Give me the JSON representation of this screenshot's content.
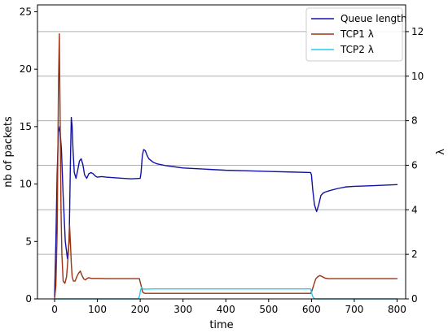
{
  "chart_data": {
    "type": "line",
    "xlabel": "time",
    "ylabel_left": "nb of packets",
    "ylabel_right": "λ",
    "xlim": [
      -40,
      820
    ],
    "ylim_left": [
      0,
      25.6
    ],
    "ylim_right": [
      0,
      13.2
    ],
    "xticks": [
      0,
      100,
      200,
      300,
      400,
      500,
      600,
      700,
      800
    ],
    "yticks_left": [
      0,
      5,
      10,
      15,
      20,
      25
    ],
    "yticks_right": [
      0,
      2,
      4,
      6,
      8,
      10,
      12
    ],
    "grid": "horizontal (right axis)",
    "legend_position": "top-right",
    "series": [
      {
        "name": "Queue length",
        "axis": "left",
        "color": "#1111aa",
        "x": [
          0,
          3,
          6,
          9,
          12,
          16,
          20,
          25,
          30,
          34,
          37,
          39,
          41,
          43,
          46,
          50,
          54,
          58,
          62,
          66,
          70,
          75,
          80,
          85,
          90,
          95,
          100,
          110,
          120,
          140,
          160,
          180,
          200,
          202,
          205,
          208,
          212,
          216,
          220,
          230,
          240,
          260,
          280,
          300,
          350,
          400,
          450,
          500,
          550,
          598,
          600,
          603,
          607,
          612,
          617,
          622,
          627,
          632,
          640,
          660,
          680,
          700,
          740,
          800
        ],
        "y": [
          0.2,
          5.0,
          11.0,
          14.5,
          15.0,
          13.0,
          9.0,
          5.0,
          3.5,
          5.0,
          12.0,
          15.8,
          15.0,
          13.0,
          11.0,
          10.5,
          11.2,
          12.0,
          12.2,
          11.7,
          10.8,
          10.5,
          10.9,
          11.0,
          10.9,
          10.7,
          10.6,
          10.65,
          10.6,
          10.55,
          10.5,
          10.45,
          10.5,
          11.0,
          12.5,
          13.0,
          12.9,
          12.5,
          12.2,
          11.9,
          11.75,
          11.6,
          11.5,
          11.4,
          11.3,
          11.2,
          11.15,
          11.1,
          11.05,
          11.0,
          10.8,
          9.5,
          8.2,
          7.6,
          8.2,
          9.0,
          9.2,
          9.3,
          9.4,
          9.6,
          9.75,
          9.8,
          9.85,
          9.95
        ]
      },
      {
        "name": "TCP1 λ",
        "axis": "right",
        "color": "#993311",
        "x": [
          0,
          3,
          6,
          9,
          11,
          13,
          15,
          17,
          20,
          24,
          28,
          32,
          35,
          37,
          39,
          41,
          44,
          48,
          52,
          56,
          60,
          64,
          68,
          72,
          76,
          80,
          86,
          92,
          100,
          120,
          150,
          180,
          198,
          202,
          206,
          210,
          250,
          300,
          400,
          500,
          580,
          598,
          600,
          605,
          610,
          615,
          620,
          625,
          632,
          640,
          700,
          800
        ],
        "y": [
          0.0,
          0.6,
          3.0,
          9.5,
          11.9,
          8.0,
          4.0,
          2.0,
          0.8,
          0.7,
          1.0,
          2.0,
          3.3,
          2.5,
          1.6,
          1.0,
          0.8,
          0.8,
          1.0,
          1.15,
          1.25,
          1.05,
          0.9,
          0.85,
          0.92,
          0.95,
          0.92,
          0.92,
          0.92,
          0.91,
          0.91,
          0.91,
          0.91,
          0.6,
          0.3,
          0.25,
          0.25,
          0.25,
          0.25,
          0.25,
          0.25,
          0.25,
          0.3,
          0.6,
          0.9,
          1.0,
          1.05,
          1.0,
          0.93,
          0.91,
          0.91,
          0.91
        ]
      },
      {
        "name": "TCP2 λ",
        "axis": "right",
        "color": "#22ccee",
        "x": [
          0,
          100,
          195,
          198,
          201,
          203,
          206,
          210,
          216,
          230,
          300,
          400,
          500,
          590,
          598,
          600,
          603,
          606,
          610,
          620,
          700,
          800
        ],
        "y": [
          0,
          0,
          0,
          0.1,
          0.4,
          0.52,
          0.45,
          0.44,
          0.44,
          0.45,
          0.45,
          0.45,
          0.45,
          0.45,
          0.45,
          0.3,
          0.1,
          0.02,
          0,
          0,
          0,
          0
        ]
      }
    ]
  }
}
